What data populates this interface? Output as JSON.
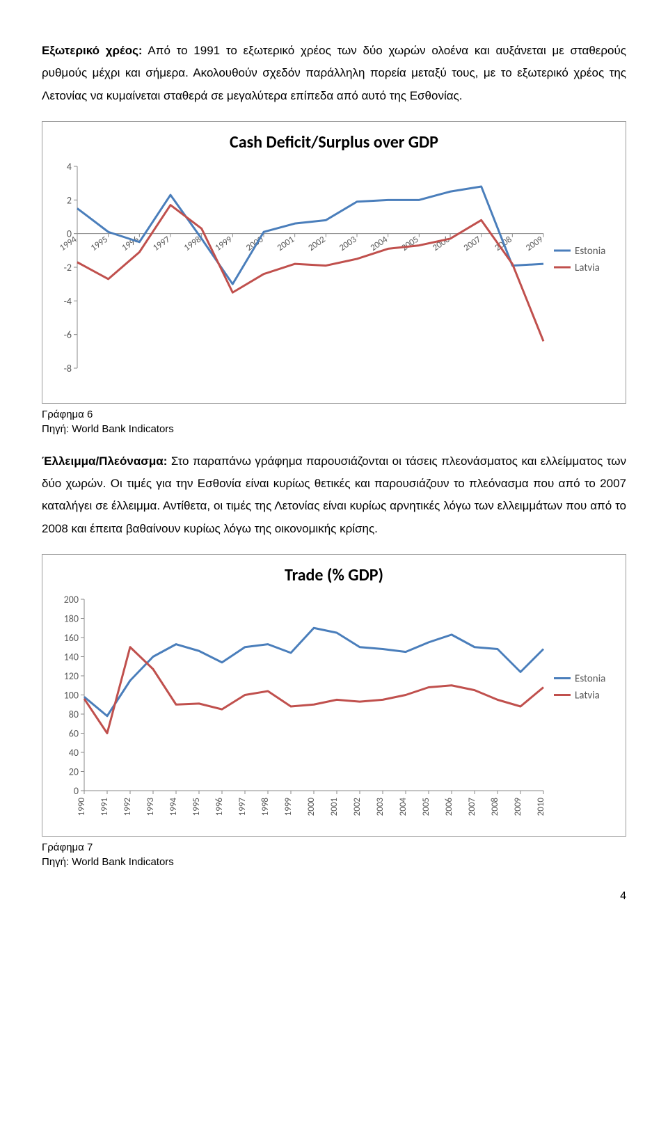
{
  "para1": {
    "label": "Εξωτερικό χρέος:",
    "text": " Από το 1991 το εξωτερικό χρέος των δύο χωρών ολοένα και αυξάνεται με σταθερούς ρυθμούς μέχρι και σήμερα. Ακολουθούν σχεδόν παράλληλη πορεία μεταξύ τους, με το εξωτερικό χρέος της Λετονίας να κυμαίνεται σταθερά σε μεγαλύτερα επίπεδα από αυτό της Εσθονίας."
  },
  "chart1": {
    "type": "line",
    "title": "Cash Deficit/Surplus over GDP",
    "x_categories": [
      "1994",
      "1995",
      "1996",
      "1997",
      "1998",
      "1999",
      "2000",
      "2001",
      "2002",
      "2003",
      "2004",
      "2005",
      "2006",
      "2007",
      "2008",
      "2009"
    ],
    "ylim": [
      -8,
      4
    ],
    "ytick_step": 2,
    "series": [
      {
        "name": "Estonia",
        "color": "#4a7ebb",
        "values": [
          1.5,
          0.1,
          -0.5,
          2.3,
          -0.3,
          -3.0,
          0.1,
          0.6,
          0.8,
          1.9,
          2.0,
          2.0,
          2.5,
          2.8,
          -1.9,
          -1.8
        ]
      },
      {
        "name": "Latvia",
        "color": "#c0504d",
        "values": [
          -1.7,
          -2.7,
          -1.1,
          1.7,
          0.3,
          -3.5,
          -2.4,
          -1.8,
          -1.9,
          -1.5,
          -0.9,
          -0.7,
          -0.3,
          0.8,
          -1.8,
          -6.4
        ]
      }
    ],
    "line_width": 3,
    "background_color": "#ffffff",
    "axis_color": "#888888",
    "tick_font_size": 14,
    "legend_position": "right"
  },
  "caption1_a": "Γράφημα 6",
  "caption1_b": "Πηγή: World Bank Indicators",
  "para2": {
    "label": "Έλλειμμα/Πλεόνασμα:",
    "text": " Στο παραπάνω γράφημα παρουσιάζονται οι τάσεις πλεονάσματος και ελλείμματος των δύο χωρών. Οι τιμές για την Εσθονία είναι κυρίως θετικές και παρουσιάζουν το πλεόνασμα που από το 2007 καταλήγει σε έλλειμμα. Αντίθετα, οι τιμές της Λετονίας είναι κυρίως αρνητικές λόγω των ελλειμμάτων που από το 2008 και έπειτα βαθαίνουν κυρίως λόγω της οικονομικής κρίσης."
  },
  "chart2": {
    "type": "line",
    "title": "Trade (% GDP)",
    "x_categories": [
      "1990",
      "1991",
      "1992",
      "1993",
      "1994",
      "1995",
      "1996",
      "1997",
      "1998",
      "1999",
      "2000",
      "2001",
      "2002",
      "2003",
      "2004",
      "2005",
      "2006",
      "2007",
      "2008",
      "2009",
      "2010"
    ],
    "ylim": [
      0,
      200
    ],
    "ytick_step": 20,
    "series": [
      {
        "name": "Estonia",
        "color": "#4a7ebb",
        "values": [
          98,
          78,
          115,
          140,
          153,
          146,
          134,
          150,
          153,
          144,
          170,
          165,
          150,
          148,
          145,
          155,
          163,
          150,
          148,
          124,
          148
        ]
      },
      {
        "name": "Latvia",
        "color": "#c0504d",
        "values": [
          96,
          60,
          150,
          127,
          90,
          91,
          85,
          100,
          104,
          88,
          90,
          95,
          93,
          95,
          100,
          108,
          110,
          105,
          95,
          88,
          108
        ]
      }
    ],
    "line_width": 3,
    "background_color": "#ffffff",
    "axis_color": "#888888",
    "tick_font_size": 13,
    "legend_position": "right"
  },
  "caption2_a": "Γράφημα 7",
  "caption2_b": "Πηγή: World Bank Indicators",
  "page_number": "4"
}
